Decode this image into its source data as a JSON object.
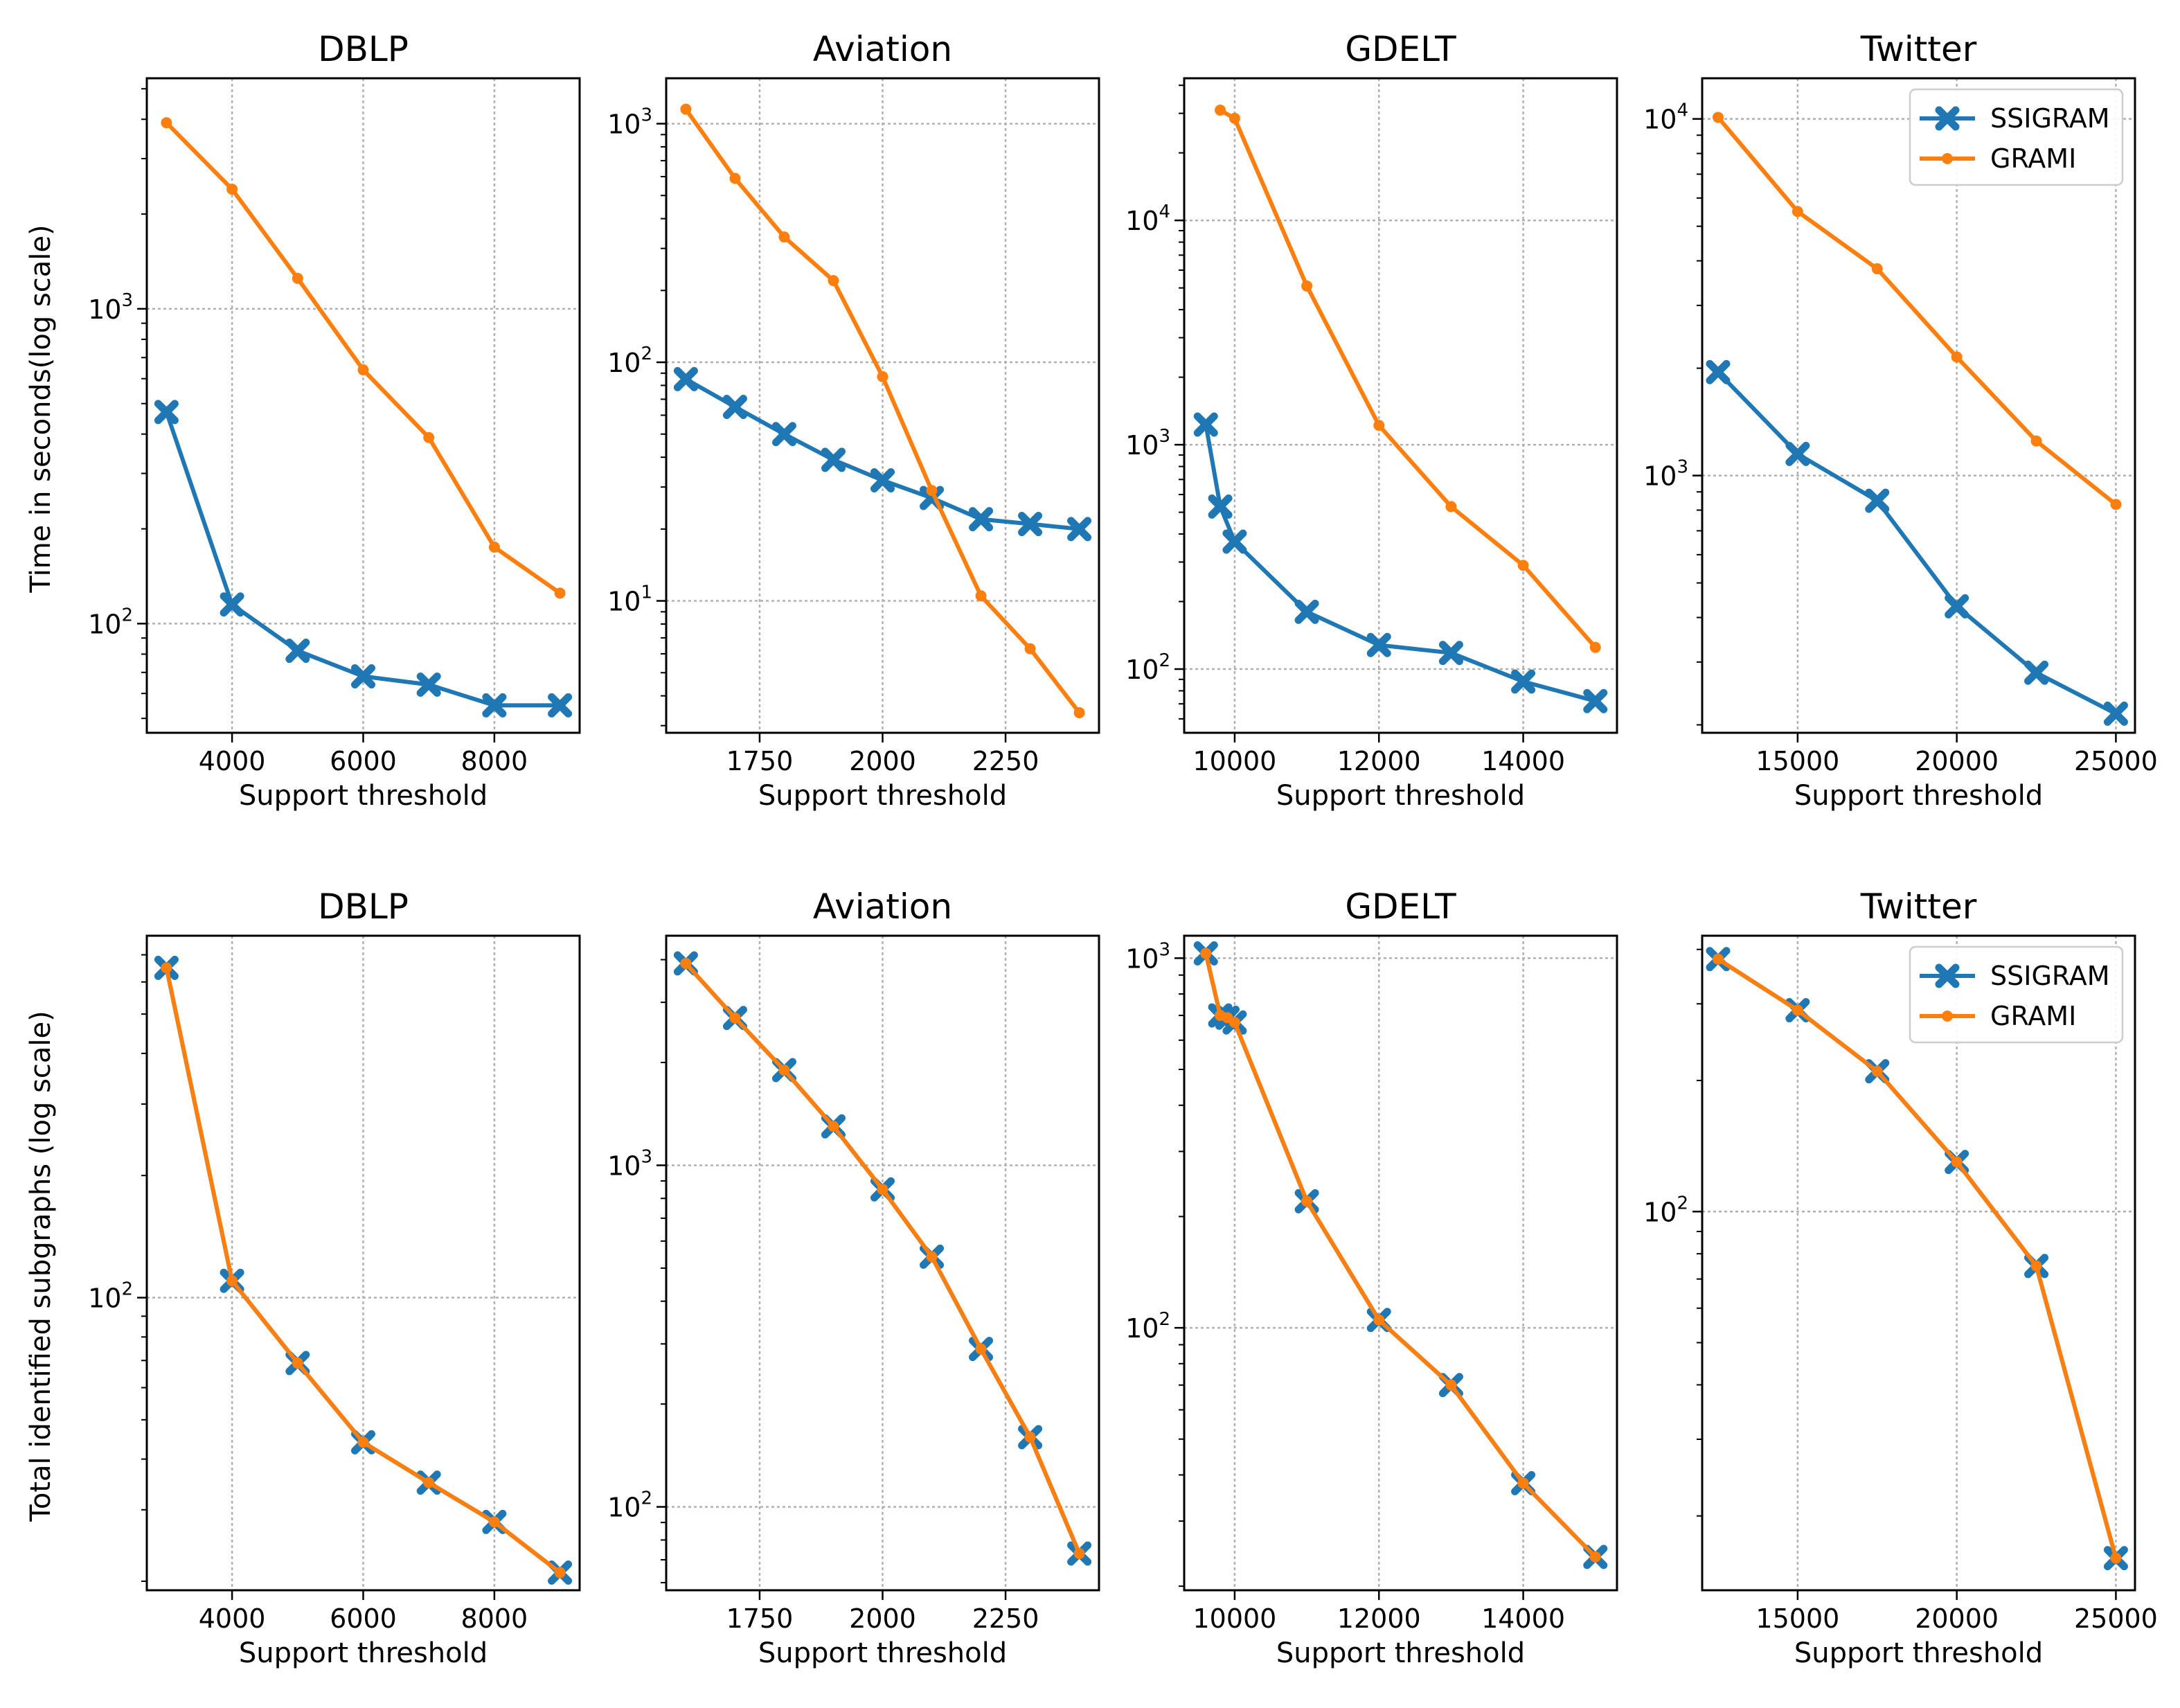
{
  "colors": {
    "ssigram": "#1f77b4",
    "grami": "#ff7f0e",
    "grid": "#b0b0b0"
  },
  "legend": {
    "ssigram": "SSIGRAM",
    "grami": "GRAMI"
  },
  "shared_xlabel": "Support threshold",
  "row_ylabels": [
    "Time in seconds(log scale)",
    "Total identified subgraphs (log scale)"
  ],
  "chart_data": [
    {
      "type": "line",
      "scale": "log",
      "title": "DBLP",
      "xlabel": "Support threshold",
      "ylabel": "Time in seconds(log scale)",
      "xlim": [
        2700,
        9300
      ],
      "ylim": [
        45,
        5400
      ],
      "xticks": [
        4000,
        6000,
        8000
      ],
      "yticks": [
        100,
        1000
      ],
      "series": [
        {
          "name": "SSIGRAM",
          "x": [
            3000,
            4000,
            5000,
            6000,
            7000,
            8000,
            9000
          ],
          "values": [
            470,
            115,
            82,
            68,
            64,
            55,
            55
          ]
        },
        {
          "name": "GRAMI",
          "x": [
            3000,
            4000,
            5000,
            6000,
            7000,
            8000,
            9000
          ],
          "values": [
            3900,
            2400,
            1250,
            640,
            390,
            175,
            125
          ]
        }
      ]
    },
    {
      "type": "line",
      "scale": "log",
      "title": "Aviation",
      "xlabel": "Support threshold",
      "ylabel": "",
      "xlim": [
        1560,
        2440
      ],
      "ylim": [
        2.8,
        1550
      ],
      "xticks": [
        1750,
        2000,
        2250
      ],
      "yticks": [
        10,
        100,
        1000
      ],
      "series": [
        {
          "name": "SSIGRAM",
          "x": [
            1600,
            1700,
            1800,
            1900,
            2000,
            2100,
            2200,
            2300,
            2400
          ],
          "values": [
            85,
            65,
            50,
            39,
            32,
            27,
            22,
            21,
            20
          ]
        },
        {
          "name": "GRAMI",
          "x": [
            1600,
            1700,
            1800,
            1900,
            2000,
            2100,
            2200,
            2300,
            2400
          ],
          "values": [
            1150,
            590,
            335,
            220,
            87,
            29,
            10.5,
            6.3,
            3.4
          ]
        }
      ]
    },
    {
      "type": "line",
      "scale": "log",
      "title": "GDELT",
      "xlabel": "Support threshold",
      "ylabel": "",
      "xlim": [
        9300,
        15300
      ],
      "ylim": [
        52,
        43000
      ],
      "xticks": [
        10000,
        12000,
        14000
      ],
      "yticks": [
        100,
        1000,
        10000
      ],
      "series": [
        {
          "name": "SSIGRAM",
          "x": [
            9600,
            9800,
            10000,
            11000,
            12000,
            13000,
            14000,
            15000
          ],
          "values": [
            1230,
            530,
            370,
            180,
            128,
            118,
            88,
            72
          ]
        },
        {
          "name": "GRAMI",
          "x": [
            9800,
            10000,
            11000,
            12000,
            13000,
            14000,
            15000
          ],
          "values": [
            31000,
            28500,
            5100,
            1220,
            530,
            290,
            125
          ]
        }
      ]
    },
    {
      "type": "line",
      "scale": "log",
      "title": "Twitter",
      "xlabel": "Support threshold",
      "ylabel": "",
      "xlim": [
        12000,
        25600
      ],
      "ylim": [
        190,
        13000
      ],
      "xticks": [
        15000,
        20000,
        25000
      ],
      "yticks": [
        1000,
        10000
      ],
      "series": [
        {
          "name": "SSIGRAM",
          "x": [
            12500,
            15000,
            17500,
            20000,
            22500,
            25000
          ],
          "values": [
            1950,
            1150,
            850,
            430,
            280,
            215
          ]
        },
        {
          "name": "GRAMI",
          "x": [
            12500,
            15000,
            17500,
            20000,
            22500,
            25000
          ],
          "values": [
            10100,
            5500,
            3800,
            2150,
            1250,
            830
          ]
        }
      ],
      "legend_position": "upper right"
    },
    {
      "type": "line",
      "scale": "log",
      "title": "DBLP",
      "xlabel": "Support threshold",
      "ylabel": "Total identified subgraphs (log scale)",
      "xlim": [
        2700,
        9300
      ],
      "ylim": [
        19,
        780
      ],
      "xticks": [
        4000,
        6000,
        8000
      ],
      "yticks": [
        100
      ],
      "series": [
        {
          "name": "SSIGRAM",
          "x": [
            3000,
            4000,
            5000,
            6000,
            7000,
            8000,
            9000
          ],
          "values": [
            650,
            110,
            69,
            44,
            35,
            28,
            21
          ]
        },
        {
          "name": "GRAMI",
          "x": [
            3000,
            4000,
            5000,
            6000,
            7000,
            8000,
            9000
          ],
          "values": [
            650,
            110,
            69,
            44,
            35,
            28,
            21
          ]
        }
      ]
    },
    {
      "type": "line",
      "scale": "log",
      "title": "Aviation",
      "xlabel": "Support threshold",
      "ylabel": "",
      "xlim": [
        1560,
        2440
      ],
      "ylim": [
        57,
        4700
      ],
      "xticks": [
        1750,
        2000,
        2250
      ],
      "yticks": [
        100,
        1000
      ],
      "series": [
        {
          "name": "SSIGRAM",
          "x": [
            1600,
            1700,
            1800,
            1900,
            2000,
            2100,
            2200,
            2300,
            2400
          ],
          "values": [
            3900,
            2700,
            1900,
            1300,
            850,
            540,
            290,
            160,
            73
          ]
        },
        {
          "name": "GRAMI",
          "x": [
            1600,
            1700,
            1800,
            1900,
            2000,
            2100,
            2200,
            2300,
            2400
          ],
          "values": [
            3900,
            2700,
            1900,
            1300,
            850,
            540,
            290,
            160,
            73
          ]
        }
      ]
    },
    {
      "type": "line",
      "scale": "log",
      "title": "GDELT",
      "xlabel": "Support threshold",
      "ylabel": "",
      "xlim": [
        9300,
        15300
      ],
      "ylim": [
        19.5,
        1150
      ],
      "xticks": [
        10000,
        12000,
        14000
      ],
      "yticks": [
        100,
        1000
      ],
      "series": [
        {
          "name": "SSIGRAM",
          "x": [
            9600,
            9800,
            9900,
            10000,
            11000,
            12000,
            13000,
            14000,
            15000
          ],
          "values": [
            1030,
            700,
            690,
            670,
            220,
            105,
            70,
            38,
            24
          ]
        },
        {
          "name": "GRAMI",
          "x": [
            9600,
            9800,
            9900,
            10000,
            11000,
            12000,
            13000,
            14000,
            15000
          ],
          "values": [
            1030,
            700,
            690,
            670,
            220,
            105,
            70,
            38,
            24
          ]
        }
      ]
    },
    {
      "type": "line",
      "scale": "log",
      "title": "Twitter",
      "xlabel": "Support threshold",
      "ylabel": "",
      "xlim": [
        12000,
        25600
      ],
      "ylim": [
        13.5,
        430
      ],
      "xticks": [
        15000,
        20000,
        25000
      ],
      "yticks": [
        100
      ],
      "series": [
        {
          "name": "SSIGRAM",
          "x": [
            12500,
            15000,
            17500,
            20000,
            22500,
            25000
          ],
          "values": [
            380,
            290,
            210,
            130,
            75,
            16
          ]
        },
        {
          "name": "GRAMI",
          "x": [
            12500,
            15000,
            17500,
            20000,
            22500,
            25000
          ],
          "values": [
            380,
            290,
            210,
            130,
            75,
            16
          ]
        }
      ],
      "legend_position": "upper right"
    }
  ]
}
